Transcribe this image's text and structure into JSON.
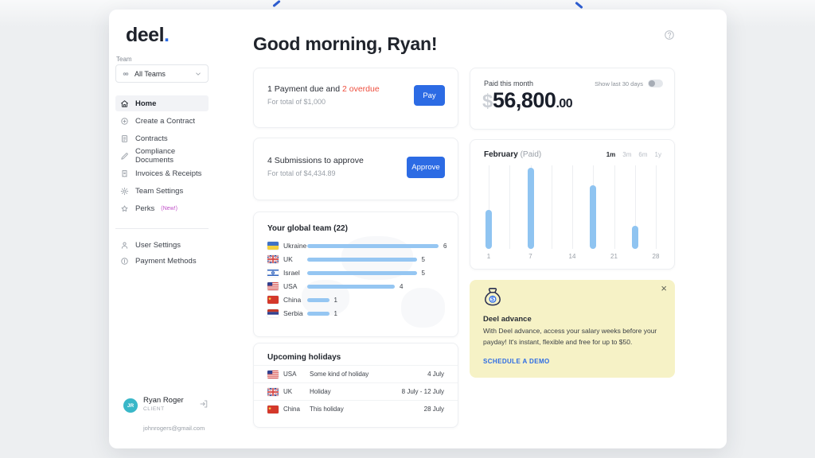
{
  "page": {
    "greeting": "Good morning, Ryan!"
  },
  "logo": {
    "text": "deel",
    "dot": "."
  },
  "sidebar": {
    "team_label": "Team",
    "team_selector": {
      "value": "All Teams"
    },
    "items": [
      {
        "label": "Home",
        "icon": "home",
        "active": true
      },
      {
        "label": "Create a Contract",
        "icon": "plus-circle",
        "active": false
      },
      {
        "label": "Contracts",
        "icon": "document",
        "active": false
      },
      {
        "label": "Compliance Documents",
        "icon": "pen",
        "active": false
      },
      {
        "label": "Invoices & Receipts",
        "icon": "receipt",
        "active": false
      },
      {
        "label": "Team Settings",
        "icon": "gear",
        "active": false
      },
      {
        "label": "Perks",
        "badge": "(New!)",
        "icon": "star",
        "active": false
      }
    ],
    "secondary_items": [
      {
        "label": "User Settings",
        "icon": "person"
      },
      {
        "label": "Payment Methods",
        "icon": "coin"
      }
    ],
    "user": {
      "initials": "JR",
      "name": "Ryan Roger",
      "role": "CLIENT",
      "email": "johnrogers@gmail.com"
    }
  },
  "cards": {
    "payment_due": {
      "title_prefix": "1 Payment due and ",
      "title_overdue": "2 overdue",
      "subtitle": "For total of $1,000",
      "button_label": "Pay"
    },
    "submissions": {
      "title": "4 Submissions to approve",
      "subtitle": "For total of $4,434.89",
      "button_label": "Approve"
    },
    "paid_this_month": {
      "label": "Paid this month",
      "currency_symbol": "$",
      "amount": "56,800",
      "cents": ".00",
      "toggle_label": "Show last 30 days",
      "toggle_on": false
    },
    "deel_advance": {
      "title": "Deel advance",
      "body": "With Deel advance, access your salary weeks before your payday! It's instant, flexible and free for up to $50.",
      "cta": "SCHEDULE A DEMO",
      "close": "×"
    }
  },
  "chart_data": [
    {
      "id": "global_team",
      "type": "bar",
      "orientation": "horizontal",
      "title": "Your global team (22)",
      "categories": [
        "Ukraine",
        "UK",
        "Israel",
        "USA",
        "China",
        "Serbia"
      ],
      "values": [
        6,
        5,
        5,
        4,
        1,
        1
      ],
      "flags": [
        "ua",
        "gb",
        "il",
        "us",
        "cn",
        "rs"
      ],
      "xlim": [
        0,
        6
      ],
      "bar_color": "#95c6f2",
      "legend": "none",
      "grid": false
    },
    {
      "id": "february_paid",
      "type": "bar",
      "title": "February",
      "subtitle": "(Paid)",
      "range_options": [
        "1m",
        "3m",
        "6m",
        "1y"
      ],
      "active_range": "1m",
      "gridline_count": 9,
      "x_tick_labels": [
        "1",
        "7",
        "14",
        "21",
        "28"
      ],
      "x_tick_gridline_indexes": [
        0,
        2,
        4,
        6,
        8
      ],
      "bars": [
        {
          "gridline_index": 0,
          "day": 1,
          "height_pct": 47
        },
        {
          "gridline_index": 2,
          "day": 7,
          "height_pct": 97
        },
        {
          "gridline_index": 5,
          "day": 18,
          "height_pct": 76
        },
        {
          "gridline_index": 7,
          "day": 25,
          "height_pct": 28
        }
      ],
      "bar_color": "#8fc4f1",
      "grid": true,
      "legend": "none"
    }
  ],
  "holidays": {
    "title": "Upcoming holidays",
    "rows": [
      {
        "country": "USA",
        "flag": "us",
        "name": "Some kind of holiday",
        "date": "4 July"
      },
      {
        "country": "UK",
        "flag": "gb",
        "name": "Holiday",
        "date": "8 July - 12 July"
      },
      {
        "country": "China",
        "flag": "cn",
        "name": "This holiday",
        "date": "28 July"
      }
    ]
  },
  "colors": {
    "accent_blue": "#2c6be4",
    "bar_blue": "#8fc4f1",
    "overdue_red": "#ee4f3f",
    "advance_bg": "#f6f2c6",
    "avatar_teal": "#39b7c8",
    "perks_badge": "#c050c8"
  }
}
